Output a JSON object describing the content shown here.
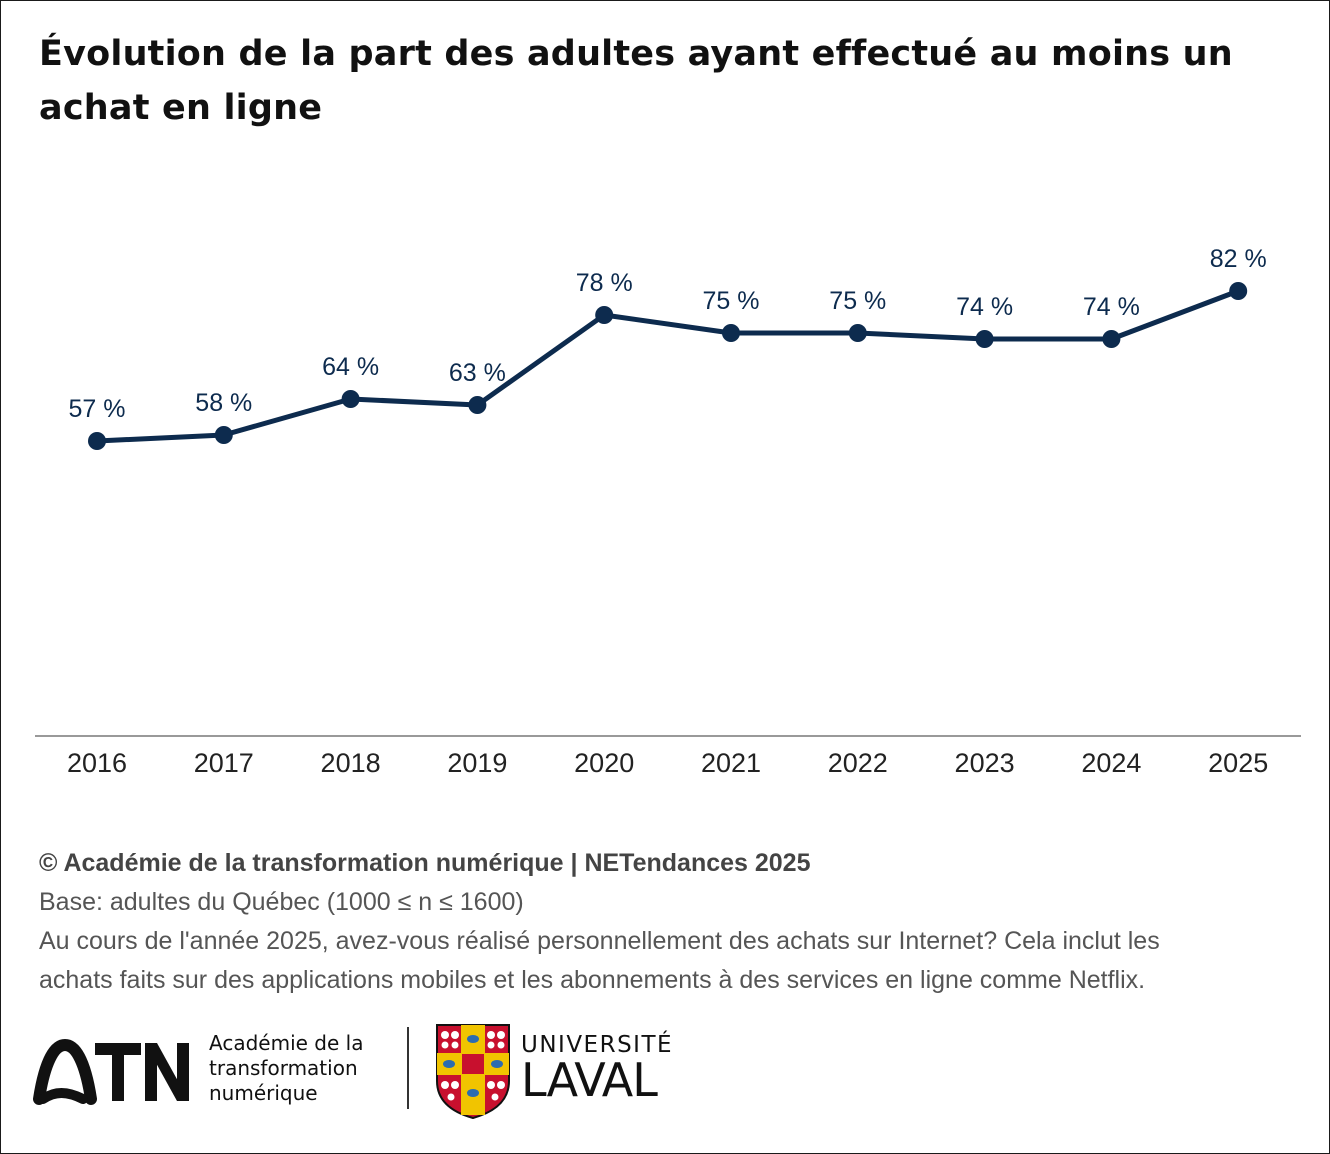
{
  "chart_data": {
    "type": "line",
    "title": "Évolution de la part des adultes ayant effectué au moins un achat en ligne",
    "categories": [
      "2016",
      "2017",
      "2018",
      "2019",
      "2020",
      "2021",
      "2022",
      "2023",
      "2024",
      "2025"
    ],
    "series": [
      {
        "values": [
          57,
          58,
          64,
          63,
          78,
          75,
          75,
          74,
          74,
          82
        ],
        "labels": [
          "57 %",
          "58 %",
          "64 %",
          "63 %",
          "78 %",
          "75 %",
          "75 %",
          "74 %",
          "74 %",
          "82 %"
        ]
      }
    ],
    "xlabel": "",
    "ylabel": "",
    "grid": false,
    "legend": "none"
  },
  "colors": {
    "line": "#0d2b4e",
    "axis": "#999999",
    "text": "#222222"
  },
  "footer": {
    "source": "© Académie de la transformation numérique | NETendances 2025",
    "base": "Base: adultes du Québec (1000 ≤ n ≤ 1600)",
    "question_line1": "Au cours de l'année 2025, avez-vous réalisé personnellement des achats sur Internet? Cela inclut les",
    "question_line2": "achats faits sur des applications mobiles et les abonnements à des services en ligne comme Netflix."
  },
  "logos": {
    "atn_mark": "ATN",
    "atn_line1": "Académie de la",
    "atn_line2": "transformation",
    "atn_line3": "numérique",
    "ul_line1": "UNIVERSITÉ",
    "ul_line2": "LAVAL"
  }
}
